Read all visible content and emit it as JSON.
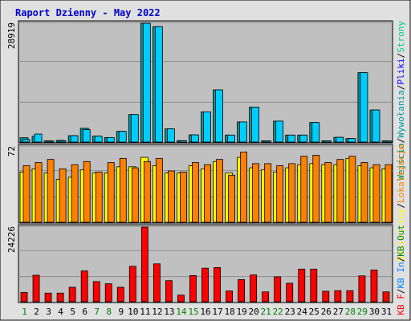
{
  "title": "Raport Dzienny -  May 2022",
  "colors": {
    "page_bg": "#e0e0e0",
    "plot_bg": "#c0c0c0",
    "title": "#0000cc",
    "grid": "#8e8e8e",
    "visits": "#00ccff",
    "hits": "#009999",
    "files": "#0000ff",
    "sites": "#ff8000",
    "visitors": "#ffff00",
    "kbin": "#0080ff",
    "kbout": "#008040",
    "kbf": "#ff0000",
    "weekday_label": "#008080",
    "weekend_label": "#008000",
    "axis_text": "#000000"
  },
  "chart_data": {
    "type": "bar",
    "title": "Raport Dzienny -  May 2022",
    "x": [
      1,
      2,
      3,
      4,
      5,
      6,
      7,
      8,
      9,
      10,
      11,
      12,
      13,
      14,
      15,
      16,
      17,
      18,
      19,
      20,
      21,
      22,
      23,
      24,
      25,
      26,
      27,
      28,
      29,
      30,
      31
    ],
    "weekend_days": [
      1,
      7,
      8,
      14,
      15,
      21,
      22,
      28,
      29
    ],
    "panels": [
      {
        "ymax_label": "28919",
        "ymax": 28919,
        "legend": [
          "Wejścia",
          "/",
          "Wywołania",
          "/",
          "Pliki",
          "/",
          "Strony"
        ],
        "legend_colors": [
          "#008040",
          "#000000",
          "#009999",
          "#000000",
          "#0000ff",
          "#000000",
          "#00cc88"
        ],
        "series": [
          {
            "name": "Wywołania",
            "values": [
              1050,
              1400,
              300,
              400,
              1550,
              3350,
              1450,
              1100,
              2600,
              6700,
              28919,
              28100,
              3200,
              350,
              1750,
              7350,
              12700,
              1700,
              4900,
              8500,
              290,
              5100,
              1700,
              1700,
              4750,
              290,
              1150,
              850,
              16900,
              7800,
              290
            ]
          },
          {
            "name": "Pliki",
            "values": [
              600,
              1950,
              240,
              300,
              1550,
              3050,
              1450,
              1100,
              2600,
              6700,
              28919,
              28100,
              3200,
              300,
              1750,
              7350,
              12700,
              1700,
              4900,
              8500,
              250,
              5100,
              1700,
              1700,
              4750,
              250,
              1150,
              850,
              16900,
              7800,
              250
            ]
          }
        ]
      },
      {
        "ymax_label": "72",
        "ymax": 72,
        "legend": [
          "Odwiedziny",
          "/",
          "Lokalizacje"
        ],
        "legend_colors": [
          "#ffff00",
          "#000000",
          "#ff8000"
        ],
        "series": [
          {
            "name": "Odwiedziny",
            "values": [
              48,
              51,
              47,
              41,
              43,
              50,
              47,
              47,
              53,
              53,
              62,
              54,
              47,
              47,
              54,
              51,
              58,
              47,
              62,
              52,
              50,
              48,
              52,
              55,
              56,
              55,
              55,
              61,
              54,
              52,
              51
            ]
          },
          {
            "name": "Lokalizacje",
            "values": [
              54,
              57,
              60,
              51,
              55,
              58,
              48,
              57,
              61,
              52,
              58,
              61,
              49,
              48,
              57,
              55,
              60,
              45,
              67,
              56,
              56,
              54,
              56,
              63,
              64,
              57,
              60,
              63,
              57,
              55,
              55
            ]
          }
        ]
      },
      {
        "ymax_label": "24226",
        "ymax": 24226,
        "legend": [
          "KB F",
          "/",
          "KB In",
          "/",
          "KB Out"
        ],
        "legend_colors": [
          "#ff0000",
          "#000000",
          "#0080ff",
          "#000000",
          "#008040"
        ],
        "series": [
          {
            "name": "KB F",
            "values": [
              3000,
              8600,
              2800,
              2800,
              4700,
              10000,
              6550,
              5850,
              4700,
              11500,
              24226,
              12300,
              6850,
              2150,
              8500,
              10900,
              11100,
              3500,
              7200,
              8700,
              3200,
              8100,
              6000,
              10600,
              10600,
              3400,
              3600,
              3600,
              8400,
              10300,
              3200
            ]
          }
        ]
      }
    ]
  }
}
